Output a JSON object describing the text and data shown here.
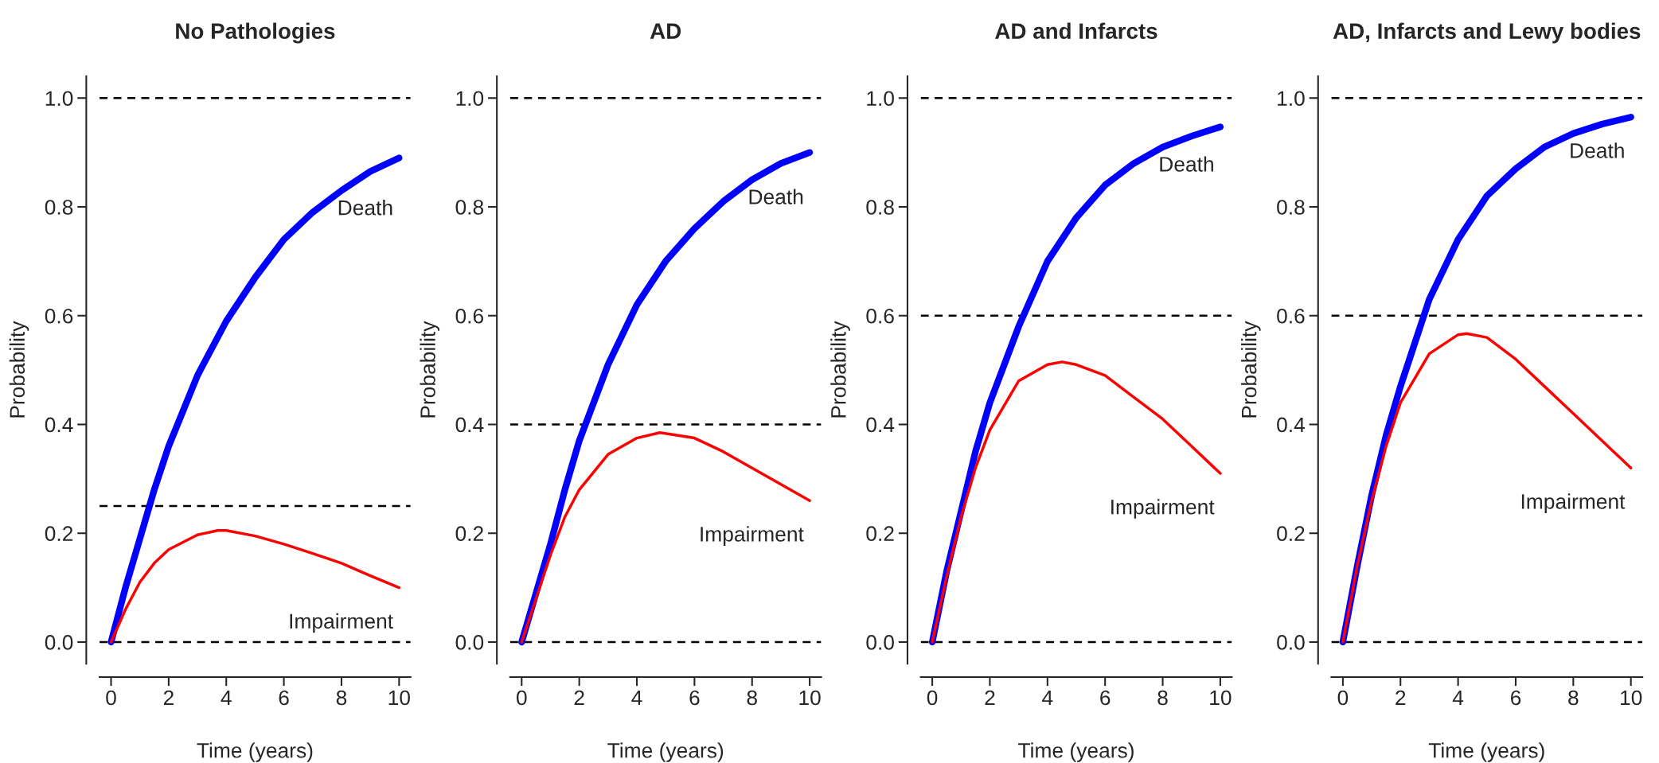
{
  "chart_data": [
    {
      "type": "line",
      "title": "No Pathologies",
      "xlabel": "Time (years)",
      "ylabel": "Probability",
      "xlim": [
        -0.4,
        10.4
      ],
      "ylim": [
        -0.04,
        1.04
      ],
      "xticks": [
        0,
        2,
        4,
        6,
        8,
        10
      ],
      "yticks": [
        {
          "value": 0,
          "label": "0.0"
        },
        {
          "value": 0.2,
          "label": "0.2"
        },
        {
          "value": 0.4,
          "label": "0.4"
        },
        {
          "value": 0.6,
          "label": "0.6"
        },
        {
          "value": 0.8,
          "label": "0.8"
        },
        {
          "value": 1,
          "label": "1.0"
        }
      ],
      "grid": false,
      "legend": false,
      "line_style": "solid",
      "marker": "none",
      "ref_lines": [
        {
          "axis": "y",
          "value": 0,
          "color": "#000000",
          "line_style": "dashed"
        },
        {
          "axis": "y",
          "value": 1,
          "color": "#000000",
          "line_style": "dashed"
        },
        {
          "axis": "y",
          "value": 0.25,
          "color": "#000000",
          "line_style": "dashed"
        }
      ],
      "series": [
        {
          "name": "Death",
          "color": "#0000ff",
          "x": [
            0,
            0.5,
            1,
            1.5,
            2,
            3,
            4,
            5,
            6,
            7,
            8,
            9,
            10
          ],
          "values": [
            0,
            0.1,
            0.19,
            0.28,
            0.36,
            0.49,
            0.59,
            0.67,
            0.74,
            0.79,
            0.83,
            0.865,
            0.89
          ]
        },
        {
          "name": "Impairment",
          "color": "#ff0000",
          "x": [
            0,
            0.5,
            1,
            1.5,
            2,
            3,
            3.7,
            4,
            5,
            6,
            7,
            8,
            9,
            10
          ],
          "values": [
            0,
            0.06,
            0.11,
            0.145,
            0.17,
            0.197,
            0.205,
            0.205,
            0.195,
            0.18,
            0.163,
            0.145,
            0.122,
            0.1
          ]
        }
      ]
    },
    {
      "type": "line",
      "title": "AD",
      "xlabel": "Time (years)",
      "ylabel": "Probability",
      "xlim": [
        -0.4,
        10.4
      ],
      "ylim": [
        -0.04,
        1.04
      ],
      "xticks": [
        0,
        2,
        4,
        6,
        8,
        10
      ],
      "yticks": [
        {
          "value": 0,
          "label": "0.0"
        },
        {
          "value": 0.2,
          "label": "0.2"
        },
        {
          "value": 0.4,
          "label": "0.4"
        },
        {
          "value": 0.6,
          "label": "0.6"
        },
        {
          "value": 0.8,
          "label": "0.8"
        },
        {
          "value": 1,
          "label": "1.0"
        }
      ],
      "grid": false,
      "legend": false,
      "line_style": "solid",
      "marker": "none",
      "ref_lines": [
        {
          "axis": "y",
          "value": 0,
          "color": "#000000",
          "line_style": "dashed"
        },
        {
          "axis": "y",
          "value": 1,
          "color": "#000000",
          "line_style": "dashed"
        },
        {
          "axis": "y",
          "value": 0.4,
          "color": "#000000",
          "line_style": "dashed"
        }
      ],
      "series": [
        {
          "name": "Death",
          "color": "#0000ff",
          "x": [
            0,
            0.5,
            1,
            1.5,
            2,
            3,
            4,
            5,
            6,
            7,
            8,
            9,
            10
          ],
          "values": [
            0,
            0.09,
            0.18,
            0.28,
            0.37,
            0.51,
            0.62,
            0.7,
            0.76,
            0.81,
            0.85,
            0.88,
            0.9
          ]
        },
        {
          "name": "Impairment",
          "color": "#ff0000",
          "x": [
            0,
            0.5,
            1,
            1.5,
            2,
            3,
            4,
            4.8,
            6,
            7,
            8,
            9,
            10
          ],
          "values": [
            0,
            0.08,
            0.16,
            0.23,
            0.28,
            0.345,
            0.375,
            0.385,
            0.375,
            0.35,
            0.32,
            0.29,
            0.26
          ]
        }
      ]
    },
    {
      "type": "line",
      "title": "AD and Infarcts",
      "xlabel": "Time (years)",
      "ylabel": "Probability",
      "xlim": [
        -0.4,
        10.4
      ],
      "ylim": [
        -0.04,
        1.04
      ],
      "xticks": [
        0,
        2,
        4,
        6,
        8,
        10
      ],
      "yticks": [
        {
          "value": 0,
          "label": "0.0"
        },
        {
          "value": 0.2,
          "label": "0.2"
        },
        {
          "value": 0.4,
          "label": "0.4"
        },
        {
          "value": 0.6,
          "label": "0.6"
        },
        {
          "value": 0.8,
          "label": "0.8"
        },
        {
          "value": 1,
          "label": "1.0"
        }
      ],
      "grid": false,
      "legend": false,
      "line_style": "solid",
      "marker": "none",
      "ref_lines": [
        {
          "axis": "y",
          "value": 0,
          "color": "#000000",
          "line_style": "dashed"
        },
        {
          "axis": "y",
          "value": 1,
          "color": "#000000",
          "line_style": "dashed"
        },
        {
          "axis": "y",
          "value": 0.6,
          "color": "#000000",
          "line_style": "dashed"
        }
      ],
      "series": [
        {
          "name": "Death",
          "color": "#0000ff",
          "x": [
            0,
            0.5,
            1,
            1.5,
            2,
            3,
            4,
            5,
            6,
            7,
            8,
            9,
            10
          ],
          "values": [
            0,
            0.13,
            0.24,
            0.35,
            0.44,
            0.58,
            0.7,
            0.78,
            0.84,
            0.88,
            0.91,
            0.93,
            0.947
          ]
        },
        {
          "name": "Impairment",
          "color": "#ff0000",
          "x": [
            0,
            0.5,
            1,
            1.5,
            2,
            3,
            4,
            4.5,
            5,
            6,
            7,
            8,
            9,
            10
          ],
          "values": [
            0,
            0.12,
            0.23,
            0.32,
            0.39,
            0.48,
            0.51,
            0.515,
            0.51,
            0.49,
            0.45,
            0.41,
            0.36,
            0.31
          ]
        }
      ]
    },
    {
      "type": "line",
      "title": "AD, Infarcts and Lewy bodies",
      "xlabel": "Time (years)",
      "ylabel": "Probability",
      "xlim": [
        -0.4,
        10.4
      ],
      "ylim": [
        -0.04,
        1.04
      ],
      "xticks": [
        0,
        2,
        4,
        6,
        8,
        10
      ],
      "yticks": [
        {
          "value": 0,
          "label": "0.0"
        },
        {
          "value": 0.2,
          "label": "0.2"
        },
        {
          "value": 0.4,
          "label": "0.4"
        },
        {
          "value": 0.6,
          "label": "0.6"
        },
        {
          "value": 0.8,
          "label": "0.8"
        },
        {
          "value": 1,
          "label": "1.0"
        }
      ],
      "grid": false,
      "legend": false,
      "line_style": "solid",
      "marker": "none",
      "ref_lines": [
        {
          "axis": "y",
          "value": 0,
          "color": "#000000",
          "line_style": "dashed"
        },
        {
          "axis": "y",
          "value": 1,
          "color": "#000000",
          "line_style": "dashed"
        },
        {
          "axis": "y",
          "value": 0.6,
          "color": "#000000",
          "line_style": "dashed"
        }
      ],
      "series": [
        {
          "name": "Death",
          "color": "#0000ff",
          "x": [
            0,
            0.5,
            1,
            1.5,
            2,
            3,
            4,
            5,
            6,
            7,
            8,
            9,
            10
          ],
          "values": [
            0,
            0.14,
            0.27,
            0.38,
            0.47,
            0.63,
            0.74,
            0.82,
            0.87,
            0.91,
            0.935,
            0.952,
            0.965
          ]
        },
        {
          "name": "Impairment",
          "color": "#ff0000",
          "x": [
            0,
            0.5,
            1,
            1.5,
            2,
            3,
            4,
            4.3,
            5,
            6,
            7,
            8,
            9,
            10
          ],
          "values": [
            0,
            0.14,
            0.26,
            0.36,
            0.44,
            0.53,
            0.565,
            0.567,
            0.56,
            0.52,
            0.47,
            0.42,
            0.37,
            0.32
          ]
        }
      ]
    }
  ]
}
